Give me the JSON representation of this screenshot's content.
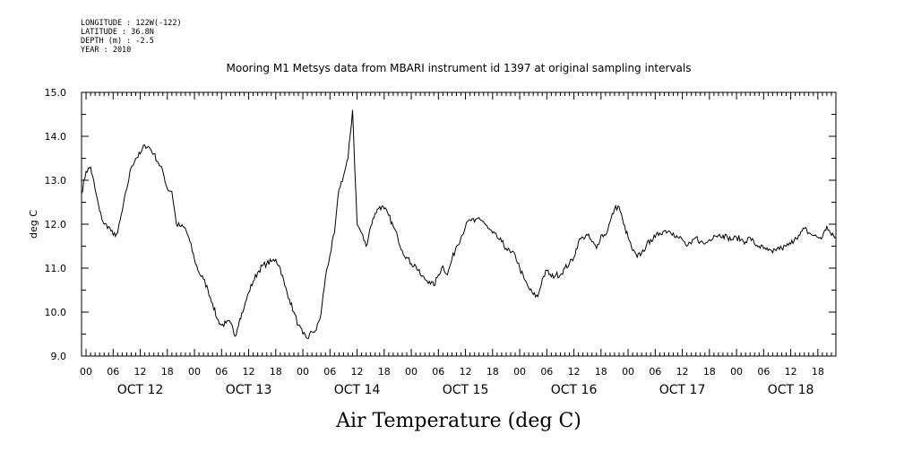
{
  "metadata": {
    "longitude": "LONGITUDE : 122W(-122)",
    "latitude": "LATITUDE : 36.8N",
    "depth": "DEPTH (m) : -2.5",
    "year": "YEAR : 2010"
  },
  "chart_data": {
    "type": "line",
    "title": "Mooring M1 Metsys data from MBARI instrument id 1397 at original sampling intervals",
    "xlabel": "Air Temperature (deg C)",
    "ylabel": "deg C",
    "ylim": [
      9.0,
      15.0
    ],
    "yticks": [
      "9.0",
      "10.0",
      "11.0",
      "12.0",
      "13.0",
      "14.0",
      "15.0"
    ],
    "xrange_hours": [
      -1,
      166
    ],
    "hour_tick_labels": [
      "00",
      "06",
      "12",
      "18"
    ],
    "day_labels": [
      "OCT 12",
      "OCT 13",
      "OCT 14",
      "OCT 15",
      "OCT 16",
      "OCT 17",
      "OCT 18"
    ],
    "series": [
      {
        "hours": [
          -1,
          0,
          1,
          2,
          3,
          4,
          5,
          6,
          7,
          8,
          9,
          10,
          11,
          12,
          13,
          14,
          15,
          16,
          17,
          18,
          19,
          20,
          21,
          22,
          23,
          24,
          25,
          26,
          27,
          28,
          29,
          30,
          31,
          32,
          33,
          34,
          35,
          36,
          37,
          38,
          39,
          40,
          41,
          42,
          43,
          44,
          45,
          46,
          47,
          48,
          49,
          50,
          51,
          52,
          53,
          54,
          55,
          56,
          57,
          58,
          59,
          60,
          61,
          62,
          63,
          64,
          65,
          66,
          67,
          68,
          69,
          70,
          71,
          72,
          73,
          74,
          75,
          76,
          77,
          78,
          79,
          80,
          81,
          82,
          83,
          84,
          85,
          86,
          87,
          88,
          89,
          90,
          91,
          92,
          93,
          94,
          95,
          96,
          97,
          98,
          99,
          100,
          101,
          102,
          103,
          104,
          105,
          106,
          107,
          108,
          109,
          110,
          111,
          112,
          113,
          114,
          115,
          116,
          117,
          118,
          119,
          120,
          121,
          122,
          123,
          124,
          125,
          126,
          127,
          128,
          129,
          130,
          131,
          132,
          133,
          134,
          135,
          136,
          137,
          138,
          139,
          140,
          141,
          142,
          143,
          144,
          145,
          146,
          147,
          148,
          149,
          150,
          151,
          152,
          153,
          154,
          155,
          156,
          157,
          158,
          159,
          160,
          161,
          162,
          163,
          164,
          165,
          166
        ],
        "values": [
          12.7,
          13.2,
          13.3,
          12.8,
          12.3,
          12.0,
          11.95,
          11.75,
          11.8,
          12.3,
          12.8,
          13.3,
          13.5,
          13.6,
          13.8,
          13.75,
          13.6,
          13.4,
          13.2,
          12.8,
          12.75,
          12.0,
          11.95,
          11.9,
          11.6,
          11.2,
          10.9,
          10.75,
          10.5,
          10.2,
          9.85,
          9.7,
          9.75,
          9.75,
          9.45,
          9.85,
          10.1,
          10.45,
          10.7,
          10.9,
          11.05,
          11.1,
          11.15,
          11.2,
          11.0,
          10.6,
          10.3,
          10.0,
          9.7,
          9.5,
          9.4,
          9.55,
          9.6,
          9.95,
          10.8,
          11.3,
          11.8,
          12.8,
          13.1,
          13.5,
          14.6,
          12.0,
          11.8,
          11.5,
          11.95,
          12.25,
          12.4,
          12.35,
          12.2,
          11.95,
          11.7,
          11.4,
          11.25,
          11.1,
          11.05,
          10.85,
          10.75,
          10.7,
          10.6,
          10.85,
          11.05,
          10.85,
          11.2,
          11.5,
          11.7,
          11.95,
          12.1,
          12.05,
          12.15,
          12.05,
          11.9,
          11.8,
          11.7,
          11.6,
          11.45,
          11.35,
          11.3,
          11.0,
          10.75,
          10.55,
          10.4,
          10.35,
          10.75,
          10.95,
          10.8,
          10.85,
          10.85,
          11.0,
          11.1,
          11.25,
          11.6,
          11.7,
          11.75,
          11.6,
          11.45,
          11.75,
          11.75,
          12.05,
          12.35,
          12.4,
          12.0,
          11.7,
          11.4,
          11.25,
          11.35,
          11.5,
          11.65,
          11.7,
          11.8,
          11.85,
          11.85,
          11.8,
          11.7,
          11.65,
          11.5,
          11.55,
          11.7,
          11.6,
          11.55,
          11.65,
          11.75,
          11.75,
          11.75,
          11.7,
          11.65,
          11.7,
          11.65,
          11.6,
          11.7,
          11.55,
          11.5,
          11.45,
          11.4,
          11.35,
          11.45,
          11.45,
          11.5,
          11.55,
          11.7,
          11.75,
          11.9,
          11.8,
          11.75,
          11.7,
          11.7,
          11.95,
          11.75,
          11.7
        ]
      }
    ]
  }
}
